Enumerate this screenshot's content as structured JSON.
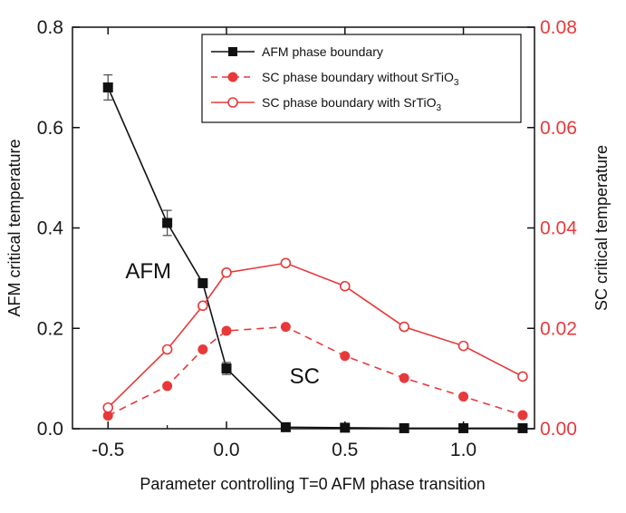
{
  "chart_data": {
    "type": "line",
    "xlabel": "Parameter controlling T=0 AFM phase transition",
    "ylabel_left": "AFM critical temperature",
    "ylabel_right": "SC critical temperature",
    "xlim": [
      -0.65,
      1.3
    ],
    "ylim_left": [
      0.0,
      0.8
    ],
    "ylim_right": [
      0.0,
      0.08
    ],
    "x_ticks": [
      -0.5,
      0.0,
      0.5,
      1.0
    ],
    "x_tick_labels": [
      "-0.5",
      "0.0",
      "0.5",
      "1.0"
    ],
    "y_left_ticks": [
      0.0,
      0.2,
      0.4,
      0.6,
      0.8
    ],
    "y_left_tick_labels": [
      "0.0",
      "0.2",
      "0.4",
      "0.6",
      "0.8"
    ],
    "y_right_ticks": [
      0.0,
      0.02,
      0.04,
      0.06,
      0.08
    ],
    "y_right_tick_labels": [
      "0.00",
      "0.02",
      "0.04",
      "0.06",
      "0.08"
    ],
    "grid": false,
    "legend_position": "top-right",
    "series": [
      {
        "name": "AFM phase boundary",
        "axis": "left",
        "color": "#111111",
        "marker": "filled-square",
        "line": "solid",
        "x": [
          -0.5,
          -0.25,
          -0.1,
          0.0,
          0.25,
          0.5,
          0.75,
          1.0,
          1.25
        ],
        "y": [
          0.68,
          0.41,
          0.29,
          0.12,
          0.003,
          0.002,
          0.001,
          0.001,
          0.001
        ],
        "yerr": [
          0.025,
          0.025,
          0.0,
          0.012,
          0.0,
          0.0,
          0.0,
          0.0,
          0.0
        ]
      },
      {
        "name": "SC phase boundary without SrTiO3",
        "axis": "right",
        "color": "#e8393a",
        "marker": "filled-circle",
        "line": "dashed",
        "x": [
          -0.5,
          -0.25,
          -0.1,
          0.0,
          0.25,
          0.5,
          0.75,
          1.0,
          1.25
        ],
        "y": [
          0.0026,
          0.0085,
          0.0158,
          0.0195,
          0.0203,
          0.0145,
          0.0101,
          0.0064,
          0.0027
        ]
      },
      {
        "name": "SC phase boundary with SrTiO3",
        "axis": "right",
        "color": "#e8393a",
        "marker": "open-circle",
        "line": "solid",
        "x": [
          -0.5,
          -0.25,
          -0.1,
          0.0,
          0.25,
          0.5,
          0.75,
          1.0,
          1.25
        ],
        "y": [
          0.0042,
          0.0158,
          0.0245,
          0.0311,
          0.033,
          0.0284,
          0.0203,
          0.0165,
          0.0104
        ]
      }
    ],
    "legend": [
      {
        "prefix": "AFM phase boundary",
        "sub": "",
        "suffix": ""
      },
      {
        "prefix": "SC phase boundary without SrTiO",
        "sub": "3",
        "suffix": ""
      },
      {
        "prefix": "SC phase boundary with SrTiO",
        "sub": "3",
        "suffix": ""
      }
    ],
    "annotations": [
      {
        "text": "AFM",
        "x": -0.33,
        "y": 0.3
      },
      {
        "text": "SC",
        "x": 0.33,
        "y": 0.09
      }
    ]
  }
}
